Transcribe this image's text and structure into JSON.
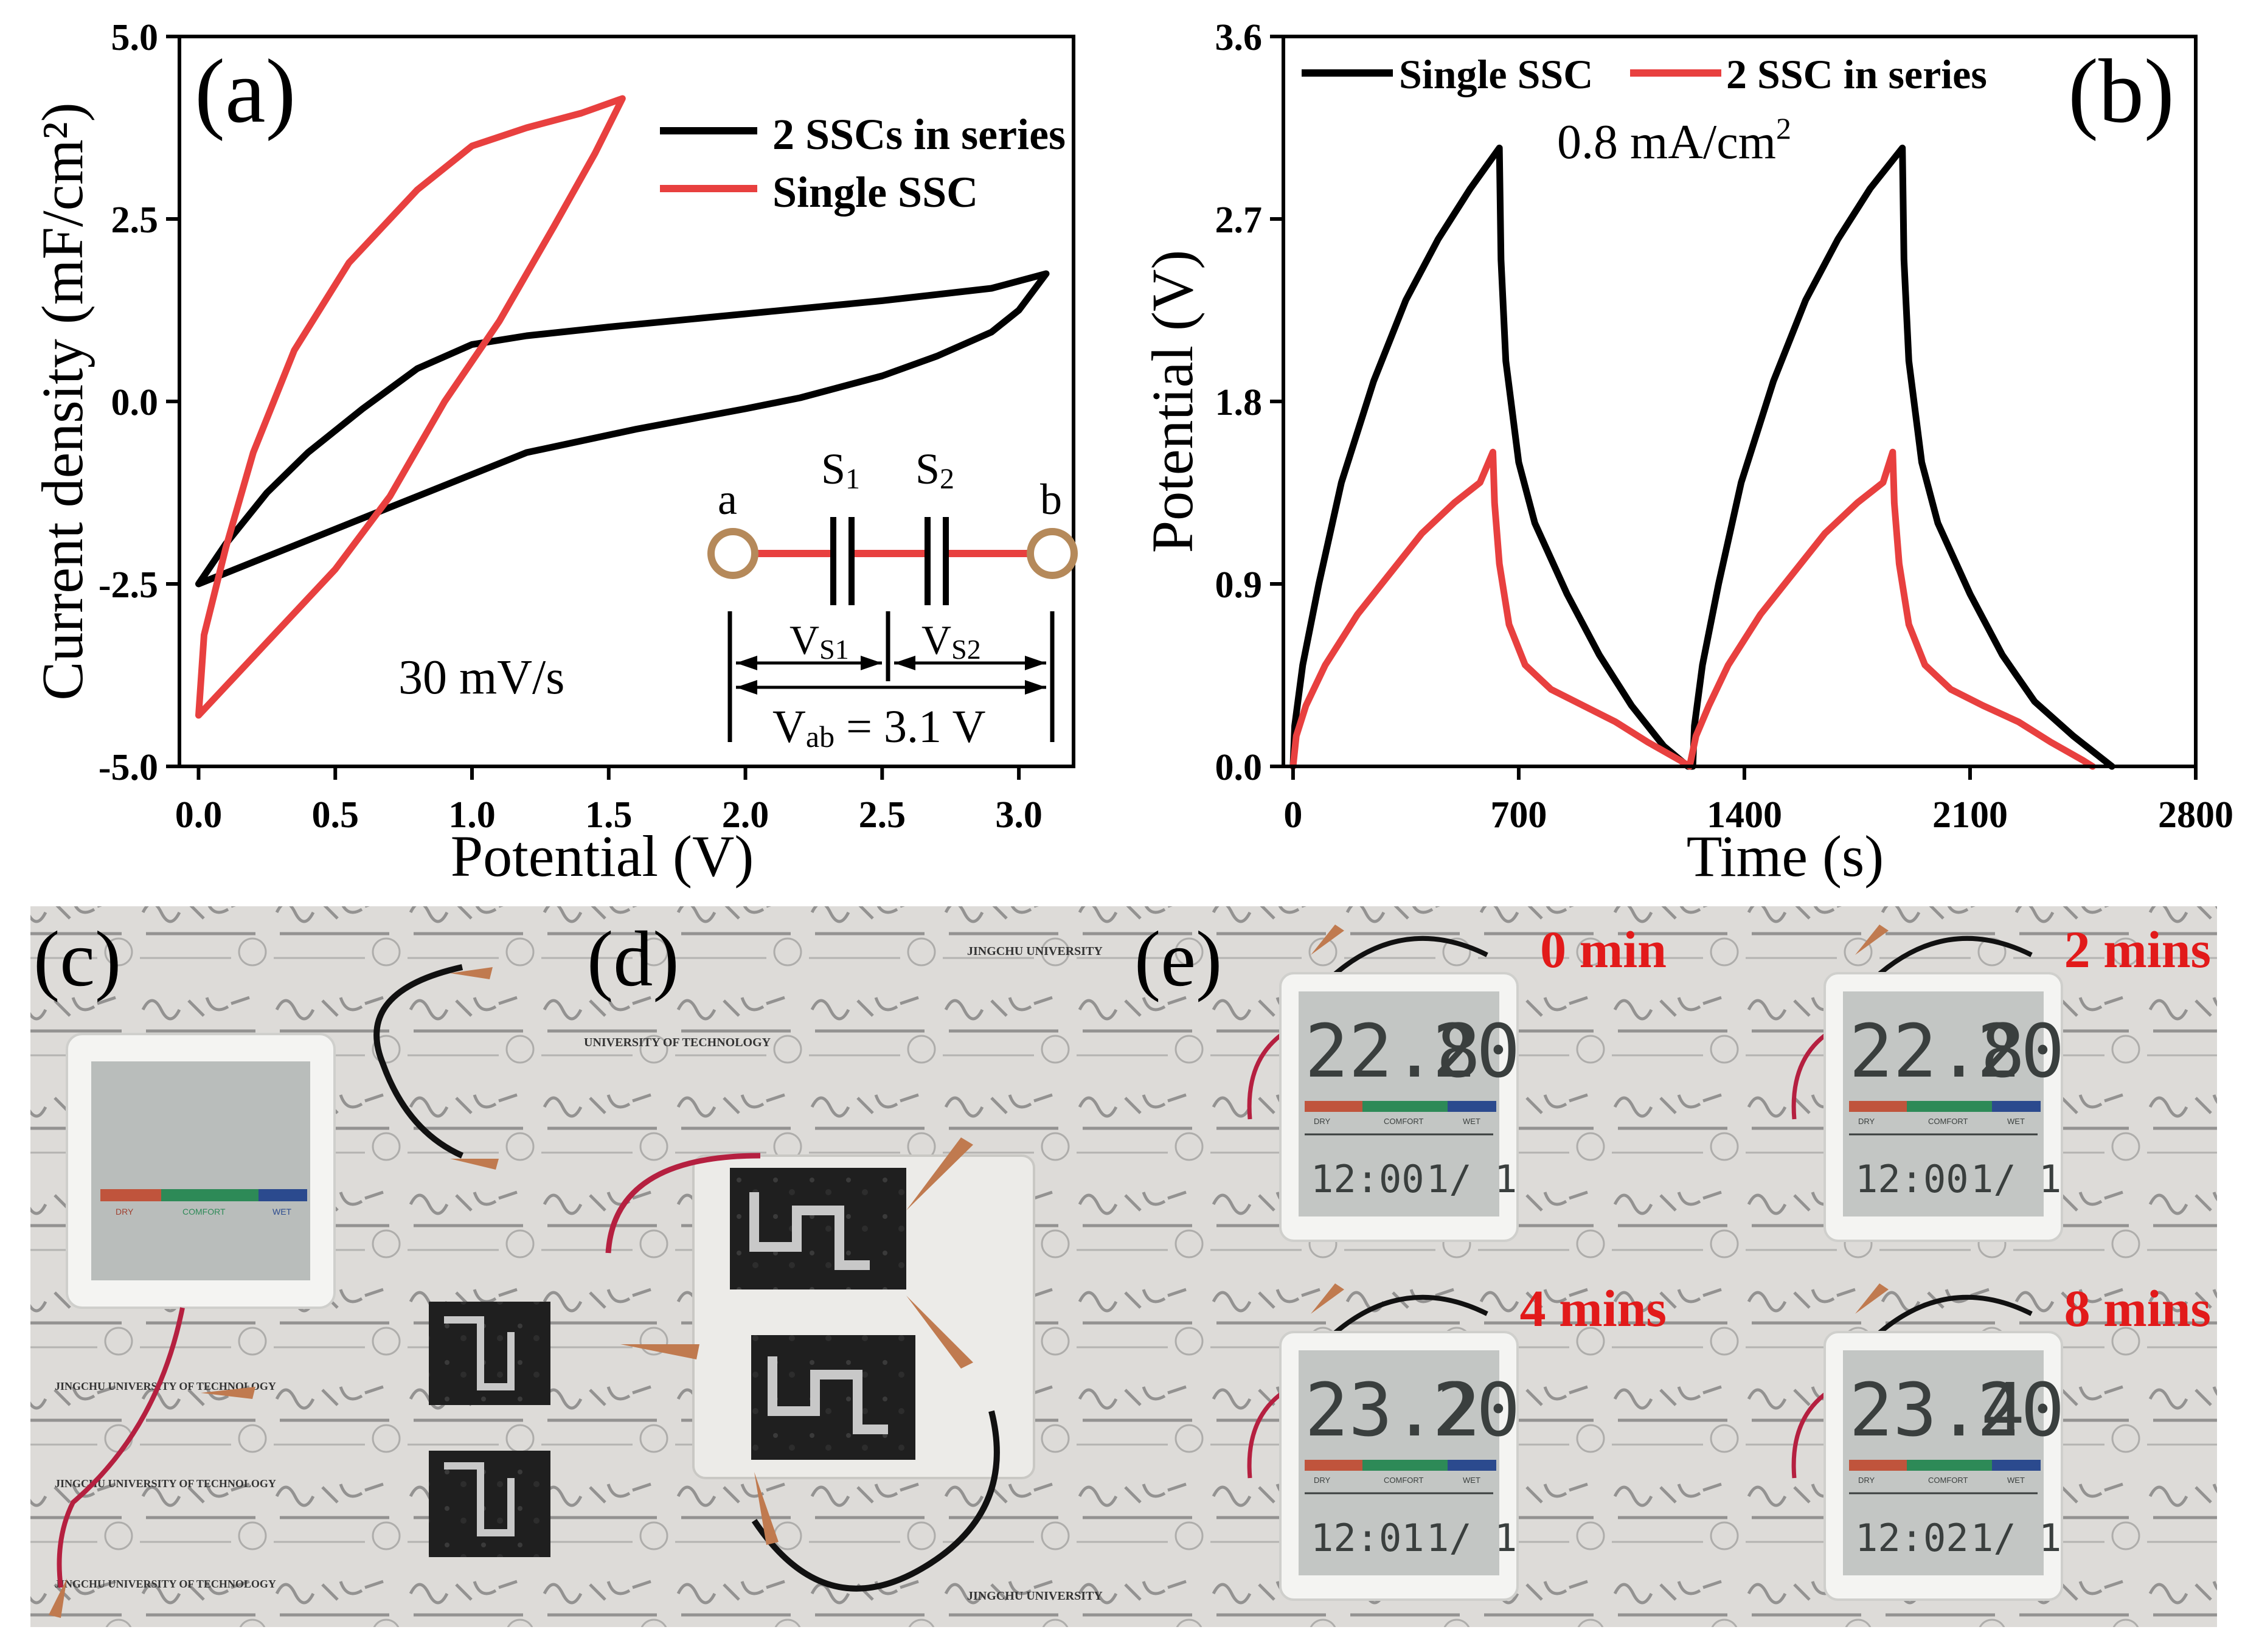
{
  "chart_data": [
    {
      "id": "a",
      "type": "line",
      "panel_label": "(a)",
      "xlabel": "Potential (V)",
      "ylabel": "Current density (mF/cm²)",
      "xlim": [
        -0.07,
        3.2
      ],
      "ylim": [
        -5.0,
        5.0
      ],
      "x_ticks": [
        0.0,
        0.5,
        1.0,
        1.5,
        2.0,
        2.5,
        3.0
      ],
      "x_tick_labels": [
        "0.0",
        "0.5",
        "1.0",
        "1.5",
        "2.0",
        "2.5",
        "3.0"
      ],
      "y_ticks": [
        -5.0,
        -2.5,
        0.0,
        2.5,
        5.0
      ],
      "y_tick_labels": [
        "-5.0",
        "-2.5",
        "0.0",
        "2.5",
        "5.0"
      ],
      "legend": [
        "2 SSCs in series",
        "Single SSC"
      ],
      "legend_position": "top-right",
      "annotation": "30 mV/s",
      "series": [
        {
          "name": "2 SSCs in series",
          "color": "#000000",
          "points": [
            [
              0.0,
              -2.5
            ],
            [
              0.1,
              -1.95
            ],
            [
              0.25,
              -1.25
            ],
            [
              0.4,
              -0.7
            ],
            [
              0.6,
              -0.1
            ],
            [
              0.8,
              0.45
            ],
            [
              1.0,
              0.78
            ],
            [
              1.2,
              0.9
            ],
            [
              1.5,
              1.02
            ],
            [
              2.0,
              1.2
            ],
            [
              2.5,
              1.38
            ],
            [
              2.9,
              1.55
            ],
            [
              3.1,
              1.75
            ],
            [
              3.0,
              1.25
            ],
            [
              2.9,
              0.95
            ],
            [
              2.7,
              0.62
            ],
            [
              2.5,
              0.35
            ],
            [
              2.2,
              0.05
            ],
            [
              2.0,
              -0.1
            ],
            [
              1.6,
              -0.38
            ],
            [
              1.2,
              -0.7
            ],
            [
              1.0,
              -1.0
            ],
            [
              0.8,
              -1.3
            ],
            [
              0.6,
              -1.6
            ],
            [
              0.4,
              -1.9
            ],
            [
              0.2,
              -2.2
            ],
            [
              0.0,
              -2.5
            ]
          ]
        },
        {
          "name": "Single SSC",
          "color": "#e8403f",
          "points": [
            [
              0.0,
              -4.3
            ],
            [
              0.02,
              -3.2
            ],
            [
              0.1,
              -2.0
            ],
            [
              0.2,
              -0.7
            ],
            [
              0.35,
              0.7
            ],
            [
              0.55,
              1.9
            ],
            [
              0.8,
              2.9
            ],
            [
              1.0,
              3.5
            ],
            [
              1.2,
              3.75
            ],
            [
              1.4,
              3.95
            ],
            [
              1.55,
              4.15
            ],
            [
              1.45,
              3.4
            ],
            [
              1.3,
              2.4
            ],
            [
              1.1,
              1.1
            ],
            [
              0.9,
              0.0
            ],
            [
              0.7,
              -1.3
            ],
            [
              0.5,
              -2.3
            ],
            [
              0.3,
              -3.1
            ],
            [
              0.15,
              -3.7
            ],
            [
              0.0,
              -4.3
            ]
          ]
        }
      ],
      "inset": {
        "node_a": "a",
        "node_b": "b",
        "s1": "S",
        "s1_sub": "1",
        "s2": "S",
        "s2_sub": "2",
        "vs1": "V",
        "vs1_sub": "S1",
        "vs2": "V",
        "vs2_sub": "S2",
        "vab": "V",
        "vab_sub": "ab",
        "vab_value": " = 3.1 V",
        "wire_color": "#e8403f",
        "node_color": "#b5895a"
      }
    },
    {
      "id": "b",
      "type": "line",
      "panel_label": "(b)",
      "xlabel": "Time (s)",
      "ylabel": "Potential (V)",
      "xlim": [
        -30,
        2800
      ],
      "ylim": [
        0.0,
        3.6
      ],
      "x_ticks": [
        0,
        700,
        1400,
        2100,
        2800
      ],
      "x_tick_labels": [
        "0",
        "700",
        "1400",
        "2100",
        "2800"
      ],
      "y_ticks": [
        0.0,
        0.9,
        1.8,
        2.7,
        3.6
      ],
      "y_tick_labels": [
        "0.0",
        "0.9",
        "1.8",
        "2.7",
        "3.6"
      ],
      "legend": [
        "Single SSC",
        "2 SSC in series"
      ],
      "legend_position": "top-left",
      "annotation": "0.8 mA/cm",
      "annotation_sup": "2",
      "series": [
        {
          "name": "Single SSC",
          "color": "#000000",
          "points": [
            [
              0,
              0.0
            ],
            [
              5,
              0.2
            ],
            [
              30,
              0.5
            ],
            [
              80,
              0.9
            ],
            [
              150,
              1.4
            ],
            [
              250,
              1.9
            ],
            [
              350,
              2.3
            ],
            [
              450,
              2.6
            ],
            [
              550,
              2.85
            ],
            [
              640,
              3.05
            ],
            [
              645,
              2.5
            ],
            [
              660,
              2.0
            ],
            [
              700,
              1.5
            ],
            [
              750,
              1.2
            ],
            [
              850,
              0.85
            ],
            [
              950,
              0.55
            ],
            [
              1050,
              0.3
            ],
            [
              1150,
              0.1
            ],
            [
              1225,
              0.0
            ],
            [
              1240,
              0.0
            ],
            [
              1245,
              0.2
            ],
            [
              1270,
              0.5
            ],
            [
              1320,
              0.9
            ],
            [
              1390,
              1.4
            ],
            [
              1490,
              1.9
            ],
            [
              1590,
              2.3
            ],
            [
              1690,
              2.6
            ],
            [
              1790,
              2.85
            ],
            [
              1890,
              3.05
            ],
            [
              1895,
              2.5
            ],
            [
              1910,
              2.0
            ],
            [
              1950,
              1.5
            ],
            [
              2000,
              1.2
            ],
            [
              2100,
              0.85
            ],
            [
              2200,
              0.55
            ],
            [
              2300,
              0.32
            ],
            [
              2420,
              0.15
            ],
            [
              2540,
              0.0
            ]
          ]
        },
        {
          "name": "2 SSC in series",
          "color": "#e8403f",
          "points": [
            [
              0,
              0.0
            ],
            [
              10,
              0.15
            ],
            [
              40,
              0.3
            ],
            [
              100,
              0.5
            ],
            [
              200,
              0.75
            ],
            [
              300,
              0.95
            ],
            [
              400,
              1.15
            ],
            [
              500,
              1.3
            ],
            [
              580,
              1.4
            ],
            [
              620,
              1.55
            ],
            [
              625,
              1.3
            ],
            [
              640,
              1.0
            ],
            [
              670,
              0.7
            ],
            [
              720,
              0.5
            ],
            [
              800,
              0.38
            ],
            [
              900,
              0.3
            ],
            [
              1000,
              0.22
            ],
            [
              1100,
              0.12
            ],
            [
              1200,
              0.03
            ],
            [
              1230,
              0.0
            ],
            [
              1250,
              0.15
            ],
            [
              1290,
              0.3
            ],
            [
              1350,
              0.5
            ],
            [
              1450,
              0.75
            ],
            [
              1550,
              0.95
            ],
            [
              1650,
              1.15
            ],
            [
              1750,
              1.3
            ],
            [
              1830,
              1.4
            ],
            [
              1860,
              1.55
            ],
            [
              1865,
              1.3
            ],
            [
              1880,
              1.0
            ],
            [
              1910,
              0.7
            ],
            [
              1960,
              0.5
            ],
            [
              2040,
              0.38
            ],
            [
              2140,
              0.3
            ],
            [
              2250,
              0.22
            ],
            [
              2350,
              0.12
            ],
            [
              2450,
              0.03
            ],
            [
              2480,
              0.0
            ]
          ]
        }
      ]
    }
  ],
  "photos": {
    "c": {
      "label": "(c)",
      "readout": {
        "bar_labels": [
          "DRY",
          "COMFORT",
          "WET"
        ]
      },
      "captions": [
        "JINGCHU UNIVERSITY OF TECHNOLOGY",
        "JINGCHU UNIVERSITY OF TECHNOLOGY",
        "JINGCHU UNIVERSITY OF TECHNOLOGY"
      ]
    },
    "d": {
      "label": "(d)",
      "captions": [
        "JINGCHU UNIVERSITY",
        "UNIVERSITY OF TECHNOLOGY",
        "JINGCHU UNIVERSITY"
      ]
    },
    "e": {
      "label": "(e)",
      "frames": [
        {
          "time": "0 min",
          "temp": "22.8",
          "hum": "20",
          "clock": "12:00",
          "date": "1/ 1"
        },
        {
          "time": "2 mins",
          "temp": "22.8",
          "hum": "20",
          "clock": "12:00",
          "date": "1/ 1"
        },
        {
          "time": "4 mins",
          "temp": "23.2",
          "hum": "20",
          "clock": "12:01",
          "date": "1/ 1"
        },
        {
          "time": "8 mins",
          "temp": "23.4",
          "hum": "20",
          "clock": "12:02",
          "date": "1/ 1"
        }
      ],
      "bar_labels": [
        "DRY",
        "COMFORT",
        "WET"
      ]
    }
  },
  "colors": {
    "black_series": "#000000",
    "red_series": "#e8403f",
    "red_text": "#e21a1a",
    "photo_bg": "#d9d7d4",
    "lcd_bg": "#c3c6c4",
    "lcd_text": "#3a3f3e",
    "dry": "#c0543c",
    "comfort": "#2d8a57",
    "wet": "#2b4a8e"
  }
}
